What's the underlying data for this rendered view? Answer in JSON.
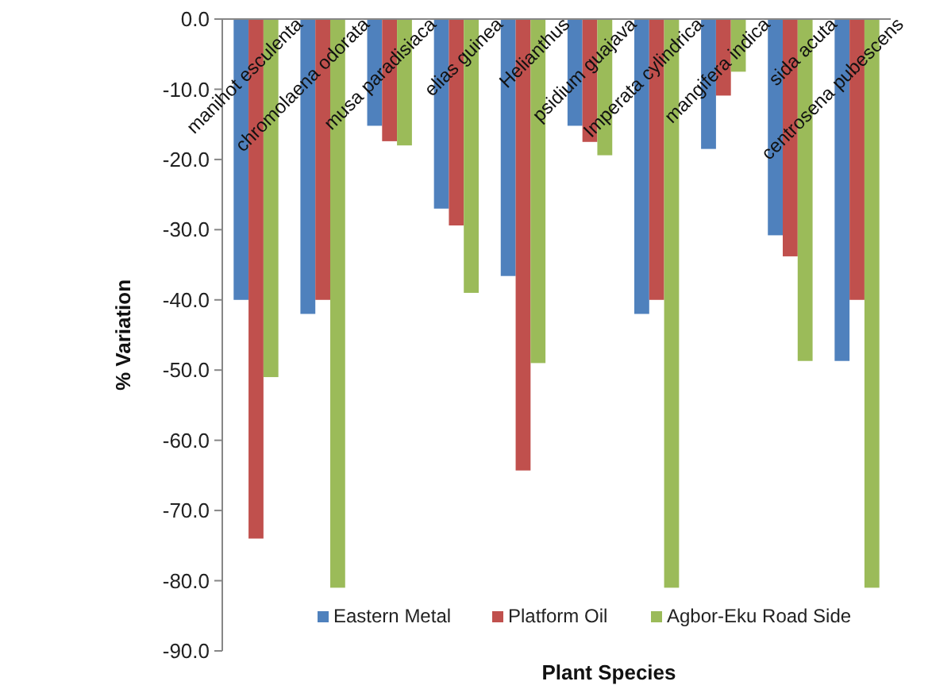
{
  "chart_data": {
    "type": "bar",
    "xlabel": "Plant Species",
    "ylabel": "% Variation",
    "categories": [
      "manihot esculenta",
      "chromolaena odorata",
      "musa paradisiaca",
      "elias guinea",
      "Helianthus",
      "psidium guajava",
      "Imperata cylindrica",
      "mangifera indica",
      "sida acuta",
      "centrosena pubescens"
    ],
    "series": [
      {
        "name": "Eastern Metal",
        "color": "#4f81bd",
        "values": [
          -40,
          -42,
          -15.2,
          -27,
          -36.6,
          -15.2,
          -42,
          -18.5,
          -30.8,
          -48.7
        ]
      },
      {
        "name": "Platform Oil",
        "color": "#c0504d",
        "values": [
          -74,
          -40,
          -17.4,
          -29.4,
          -64.3,
          -17.5,
          -40,
          -10.9,
          -33.8,
          -40
        ]
      },
      {
        "name": "Agbor-Eku Road Side",
        "color": "#9bbb59",
        "values": [
          -51,
          -81,
          -18,
          -39,
          -49,
          -19.4,
          -81,
          -7.5,
          -48.7,
          -81
        ]
      }
    ],
    "ylim": [
      -90,
      0
    ],
    "yticks": [
      {
        "value": 0,
        "label": "0.0"
      },
      {
        "value": -10,
        "label": "-10.0"
      },
      {
        "value": -20,
        "label": "-20.0"
      },
      {
        "value": -30,
        "label": "-30.0"
      },
      {
        "value": -40,
        "label": "-40.0"
      },
      {
        "value": -50,
        "label": "-50.0"
      },
      {
        "value": -60,
        "label": "-60.0"
      },
      {
        "value": -70,
        "label": "-70.0"
      },
      {
        "value": -80,
        "label": "-80.0"
      },
      {
        "value": -90,
        "label": "-90.0"
      }
    ],
    "grid": false,
    "legend": "bottom"
  }
}
